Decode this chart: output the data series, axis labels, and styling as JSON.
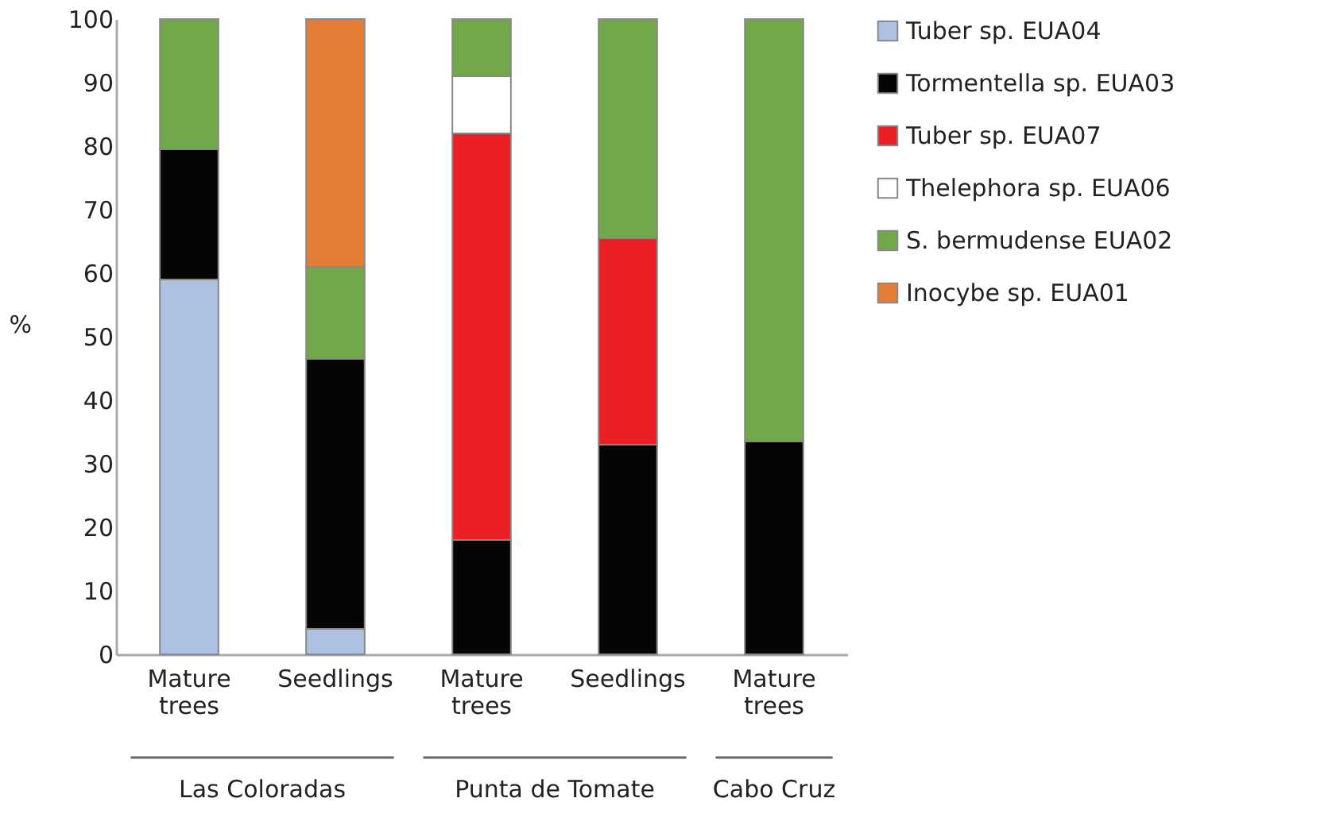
{
  "chart_data": {
    "type": "bar",
    "stacked": true,
    "ylabel": "%",
    "categories": [
      "Mature trees",
      "Seedlings",
      "Mature trees",
      "Seedlings",
      "Mature trees"
    ],
    "series": [
      {
        "name": "Tuber sp. EUA04",
        "color": "#adc1e2",
        "values": [
          59,
          4,
          0,
          0,
          0
        ]
      },
      {
        "name": "Tormentella sp. EUA03",
        "color": "#050505",
        "values": [
          20.5,
          42.5,
          18,
          33,
          33.5
        ]
      },
      {
        "name": "Tuber sp. EUA07",
        "color": "#ea2024",
        "values": [
          0,
          0,
          64,
          32.5,
          0
        ]
      },
      {
        "name": "Thelephora sp. EUA06",
        "color": "#ffffff",
        "values": [
          0,
          0,
          9,
          0,
          0
        ]
      },
      {
        "name": "S. bermudense EUA02",
        "color": "#70a84a",
        "values": [
          20.5,
          14.5,
          9,
          34.5,
          66.5
        ]
      },
      {
        "name": "Inocybe sp. EUA01",
        "color": "#e57d36",
        "values": [
          0,
          39,
          0,
          0,
          0
        ]
      }
    ],
    "ylim": [
      0,
      100
    ],
    "yticks": [
      0,
      10,
      20,
      30,
      40,
      50,
      60,
      70,
      80,
      90,
      100
    ],
    "annotations": [
      "Las Coloradas",
      "Punta de Tomate",
      "Cabo Cruz"
    ],
    "grid": false,
    "legend": "right"
  }
}
